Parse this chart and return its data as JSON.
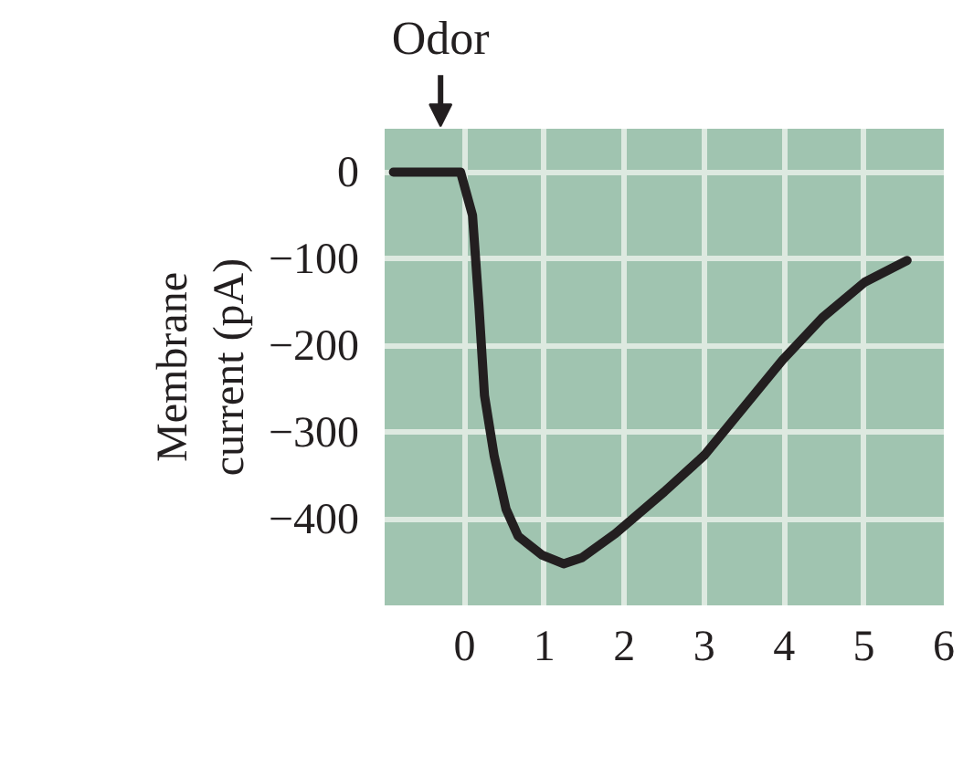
{
  "chart_data": {
    "type": "line",
    "ylabel": "Membrane\ncurrent (pA)",
    "x": [
      -0.89,
      -0.05,
      0.1,
      0.18,
      0.25,
      0.37,
      0.52,
      0.67,
      0.97,
      1.24,
      1.47,
      1.89,
      2.5,
      3.0,
      3.49,
      3.98,
      4.48,
      5.01,
      5.54
    ],
    "series": [
      {
        "color": "#231f20",
        "values": [
          0,
          0,
          -50,
          -154,
          -258,
          -327,
          -389,
          -420,
          -442,
          -452,
          -445,
          -417,
          -369,
          -327,
          -272,
          -217,
          -168,
          -127,
          -102
        ]
      }
    ],
    "xlim": [
      -1,
      6
    ],
    "ylim": [
      -500,
      50
    ],
    "xticks": [
      0,
      1,
      2,
      3,
      4,
      5,
      6
    ],
    "yticks": [
      0,
      {
        "value": -100,
        "label": "−100"
      },
      {
        "value": -200,
        "label": "−200"
      },
      {
        "value": -300,
        "label": "−300"
      },
      {
        "value": -400,
        "label": "−400"
      }
    ],
    "grid": true,
    "marker": "none",
    "line_style": "solid",
    "annotations": [
      "Odor"
    ]
  }
}
